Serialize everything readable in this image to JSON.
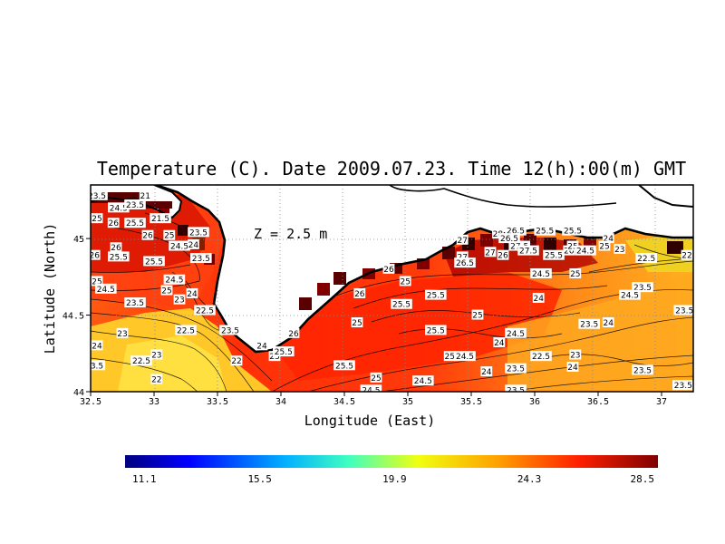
{
  "title": "Temperature (C). Date 2009.07.23. Time 12(h):00(m) GMT",
  "depth_label": "Z = 2.5 m",
  "x_axis": {
    "label": "Longitude (East)",
    "range": [
      32.5,
      37.25
    ],
    "ticks": [
      "32.5",
      "33",
      "33.5",
      "34",
      "34.5",
      "35",
      "35.5",
      "36",
      "36.5",
      "37"
    ]
  },
  "y_axis": {
    "label": "Latitude (North)",
    "range": [
      44.0,
      45.35
    ],
    "ticks": [
      "44",
      "44.5",
      "45"
    ]
  },
  "colorbar": {
    "min": 11.1,
    "max": 28.5,
    "labels": [
      "11.1",
      "15.5",
      "19.9",
      "24.3",
      "28.5"
    ]
  },
  "contour_labels": [
    {
      "text": "23.5",
      "lon": 32.55,
      "lat": 45.28
    },
    {
      "text": "21",
      "lon": 32.93,
      "lat": 45.28
    },
    {
      "text": "24.5",
      "lon": 32.72,
      "lat": 45.2
    },
    {
      "text": "23.5",
      "lon": 32.85,
      "lat": 45.22
    },
    {
      "text": "25",
      "lon": 32.55,
      "lat": 45.13
    },
    {
      "text": "26",
      "lon": 32.68,
      "lat": 45.1
    },
    {
      "text": "25.5",
      "lon": 32.85,
      "lat": 45.1
    },
    {
      "text": "21.5",
      "lon": 33.05,
      "lat": 45.13
    },
    {
      "text": "26",
      "lon": 32.95,
      "lat": 45.02
    },
    {
      "text": "25",
      "lon": 33.12,
      "lat": 45.02
    },
    {
      "text": "23.5",
      "lon": 33.35,
      "lat": 45.04
    },
    {
      "text": "26",
      "lon": 32.7,
      "lat": 44.94
    },
    {
      "text": "24.5",
      "lon": 33.2,
      "lat": 44.95
    },
    {
      "text": "24",
      "lon": 33.31,
      "lat": 44.96
    },
    {
      "text": "26",
      "lon": 32.53,
      "lat": 44.89
    },
    {
      "text": "25.5",
      "lon": 32.72,
      "lat": 44.88
    },
    {
      "text": "25.5",
      "lon": 33.0,
      "lat": 44.85
    },
    {
      "text": "23.5",
      "lon": 33.37,
      "lat": 44.87
    },
    {
      "text": "25",
      "lon": 32.55,
      "lat": 44.72
    },
    {
      "text": "24.5",
      "lon": 32.62,
      "lat": 44.67
    },
    {
      "text": "24.5",
      "lon": 33.16,
      "lat": 44.73
    },
    {
      "text": "25",
      "lon": 33.1,
      "lat": 44.66
    },
    {
      "text": "24",
      "lon": 33.3,
      "lat": 44.64
    },
    {
      "text": "23.5",
      "lon": 32.85,
      "lat": 44.58
    },
    {
      "text": "23",
      "lon": 33.2,
      "lat": 44.6
    },
    {
      "text": "22.5",
      "lon": 33.4,
      "lat": 44.53
    },
    {
      "text": "23",
      "lon": 32.75,
      "lat": 44.38
    },
    {
      "text": "22.5",
      "lon": 33.25,
      "lat": 44.4
    },
    {
      "text": "23.5",
      "lon": 33.6,
      "lat": 44.4
    },
    {
      "text": "24",
      "lon": 32.55,
      "lat": 44.3
    },
    {
      "text": "23",
      "lon": 33.02,
      "lat": 44.24
    },
    {
      "text": "22.5",
      "lon": 32.9,
      "lat": 44.2
    },
    {
      "text": "22",
      "lon": 33.65,
      "lat": 44.2
    },
    {
      "text": "3.5",
      "lon": 32.55,
      "lat": 44.17
    },
    {
      "text": "22",
      "lon": 33.02,
      "lat": 44.08
    },
    {
      "text": "24",
      "lon": 33.85,
      "lat": 44.3
    },
    {
      "text": "23",
      "lon": 33.95,
      "lat": 44.23
    },
    {
      "text": "25.5",
      "lon": 34.02,
      "lat": 44.26
    },
    {
      "text": "26",
      "lon": 34.1,
      "lat": 44.38
    },
    {
      "text": "25",
      "lon": 34.6,
      "lat": 44.45
    },
    {
      "text": "26",
      "lon": 34.85,
      "lat": 44.8
    },
    {
      "text": "26",
      "lon": 34.62,
      "lat": 44.64
    },
    {
      "text": "25",
      "lon": 34.98,
      "lat": 44.72
    },
    {
      "text": "25.5",
      "lon": 34.95,
      "lat": 44.57
    },
    {
      "text": "25.5",
      "lon": 35.22,
      "lat": 44.63
    },
    {
      "text": "25",
      "lon": 35.55,
      "lat": 44.5
    },
    {
      "text": "25.5",
      "lon": 35.22,
      "lat": 44.4
    },
    {
      "text": "25.5",
      "lon": 34.5,
      "lat": 44.17
    },
    {
      "text": "25",
      "lon": 34.75,
      "lat": 44.09
    },
    {
      "text": "24.5",
      "lon": 34.71,
      "lat": 44.01
    },
    {
      "text": "24.5",
      "lon": 35.12,
      "lat": 44.07
    },
    {
      "text": "25",
      "lon": 35.33,
      "lat": 44.23
    },
    {
      "text": "24.5",
      "lon": 35.45,
      "lat": 44.23
    },
    {
      "text": "24",
      "lon": 35.62,
      "lat": 44.13
    },
    {
      "text": "23.5",
      "lon": 35.85,
      "lat": 44.01
    },
    {
      "text": "24",
      "lon": 35.72,
      "lat": 44.32
    },
    {
      "text": "24.5",
      "lon": 35.85,
      "lat": 44.38
    },
    {
      "text": "23.5",
      "lon": 35.85,
      "lat": 44.15
    },
    {
      "text": "22.5",
      "lon": 36.05,
      "lat": 44.23
    },
    {
      "text": "23",
      "lon": 36.32,
      "lat": 44.24
    },
    {
      "text": "24",
      "lon": 36.3,
      "lat": 44.16
    },
    {
      "text": "27",
      "lon": 35.43,
      "lat": 44.99
    },
    {
      "text": "28",
      "lon": 35.71,
      "lat": 45.03
    },
    {
      "text": "26.5",
      "lon": 35.85,
      "lat": 45.05
    },
    {
      "text": "25.5",
      "lon": 36.08,
      "lat": 45.05
    },
    {
      "text": "25.5",
      "lon": 36.3,
      "lat": 45.05
    },
    {
      "text": "27",
      "lon": 35.43,
      "lat": 44.88
    },
    {
      "text": "26.5",
      "lon": 35.45,
      "lat": 44.84
    },
    {
      "text": "27",
      "lon": 35.65,
      "lat": 44.91
    },
    {
      "text": "26",
      "lon": 35.75,
      "lat": 44.89
    },
    {
      "text": "27.5",
      "lon": 35.88,
      "lat": 44.95
    },
    {
      "text": "26.5",
      "lon": 35.8,
      "lat": 45.0
    },
    {
      "text": "27.5",
      "lon": 35.95,
      "lat": 44.92
    },
    {
      "text": "25.5",
      "lon": 36.15,
      "lat": 44.89
    },
    {
      "text": "26",
      "lon": 36.27,
      "lat": 44.92
    },
    {
      "text": "25",
      "lon": 36.3,
      "lat": 44.95
    },
    {
      "text": "24.5",
      "lon": 36.4,
      "lat": 44.92
    },
    {
      "text": "24",
      "lon": 36.58,
      "lat": 45.0
    },
    {
      "text": "25",
      "lon": 36.55,
      "lat": 44.95
    },
    {
      "text": "23",
      "lon": 36.67,
      "lat": 44.93
    },
    {
      "text": "22.5",
      "lon": 36.88,
      "lat": 44.87
    },
    {
      "text": "22",
      "lon": 37.2,
      "lat": 44.89
    },
    {
      "text": "24.5",
      "lon": 36.05,
      "lat": 44.77
    },
    {
      "text": "25",
      "lon": 36.32,
      "lat": 44.77
    },
    {
      "text": "24",
      "lon": 36.03,
      "lat": 44.61
    },
    {
      "text": "23.5",
      "lon": 36.85,
      "lat": 44.68
    },
    {
      "text": "24.5",
      "lon": 36.75,
      "lat": 44.63
    },
    {
      "text": "23.5",
      "lon": 37.18,
      "lat": 44.53
    },
    {
      "text": "23.5",
      "lon": 36.43,
      "lat": 44.44
    },
    {
      "text": "24",
      "lon": 36.58,
      "lat": 44.45
    },
    {
      "text": "23.5",
      "lon": 36.85,
      "lat": 44.14
    },
    {
      "text": "23.5",
      "lon": 37.17,
      "lat": 44.04
    }
  ]
}
